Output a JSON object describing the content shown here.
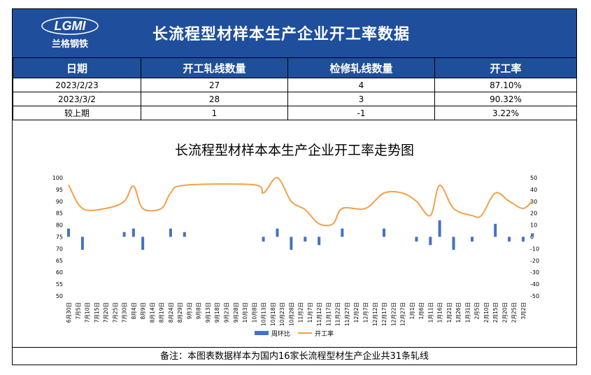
{
  "header": {
    "logo_text": "LGMI",
    "logo_sub": "兰格钢铁",
    "title": "长流程型材样本生产企业开工率数据"
  },
  "table": {
    "columns": [
      "日期",
      "开工轧线数量",
      "检修轧线数量",
      "开工率"
    ],
    "rows": [
      [
        "2023/2/23",
        "27",
        "4",
        "87.10%"
      ],
      [
        "2023/3/2",
        "28",
        "3",
        "90.32%"
      ],
      [
        "较上期",
        "1",
        "-1",
        "3.22%"
      ]
    ]
  },
  "note": "备注：本图表数据样本为国内16家长流程型材生产企业共31条轧线",
  "colors": {
    "header_bg": "#1f4e9c",
    "bar": "#4472c4",
    "line": "#f0a14a"
  },
  "chart_data": {
    "type": "bar+line",
    "title": "长流程型材样本本生产企业开工率走势图",
    "categories": [
      "6月30日",
      "7月5日",
      "7月10日",
      "7月15日",
      "7月20日",
      "7月25日",
      "7月30日",
      "8月4日",
      "8月9日",
      "8月14日",
      "8月19日",
      "8月24日",
      "8月29日",
      "9月3日",
      "9月8日",
      "9月13日",
      "9月18日",
      "9月23日",
      "9月28日",
      "10月3日",
      "10月8日",
      "10月13日",
      "10月18日",
      "10月23日",
      "10月28日",
      "11月2日",
      "11月7日",
      "11月12日",
      "11月17日",
      "11月22日",
      "11月27日",
      "12月2日",
      "12月7日",
      "12月12日",
      "12月17日",
      "12月22日",
      "12月27日",
      "1月1日",
      "1月6日",
      "1月11日",
      "1月16日",
      "1月21日",
      "1月26日",
      "1月31日",
      "2月5日",
      "2月10日",
      "2月15日",
      "2月20日",
      "2月25日",
      "3月2日"
    ],
    "left_axis": {
      "min": 50,
      "max": 100,
      "step": 5
    },
    "right_axis": {
      "min": -50,
      "max": 50,
      "step": 10
    },
    "grid": false,
    "legend_position": "bottom",
    "series": [
      {
        "name": "周环比",
        "type": "bar",
        "axis": "right",
        "points": [
          {
            "x": 0,
            "y": 7
          },
          {
            "x": 1.5,
            "y": -11
          },
          {
            "x": 6,
            "y": 4
          },
          {
            "x": 7,
            "y": 7
          },
          {
            "x": 8,
            "y": -11
          },
          {
            "x": 11,
            "y": 7
          },
          {
            "x": 12.5,
            "y": 4
          },
          {
            "x": 21,
            "y": -4
          },
          {
            "x": 22.5,
            "y": 7
          },
          {
            "x": 24,
            "y": -11
          },
          {
            "x": 25.5,
            "y": -4
          },
          {
            "x": 27,
            "y": -7
          },
          {
            "x": 29.5,
            "y": 7
          },
          {
            "x": 34,
            "y": 7
          },
          {
            "x": 37.5,
            "y": -4
          },
          {
            "x": 39,
            "y": -7
          },
          {
            "x": 40,
            "y": 14
          },
          {
            "x": 41.5,
            "y": -11
          },
          {
            "x": 43.5,
            "y": -4
          },
          {
            "x": 46,
            "y": 11
          },
          {
            "x": 47.5,
            "y": -4
          },
          {
            "x": 49,
            "y": -4
          },
          {
            "x": 50,
            "y": 3
          }
        ]
      },
      {
        "name": "开工率",
        "type": "line",
        "axis": "left",
        "points": [
          {
            "x": 0,
            "y": 97
          },
          {
            "x": 1.5,
            "y": 87
          },
          {
            "x": 4,
            "y": 87
          },
          {
            "x": 6,
            "y": 90
          },
          {
            "x": 7,
            "y": 96.5
          },
          {
            "x": 8,
            "y": 87
          },
          {
            "x": 10,
            "y": 87
          },
          {
            "x": 11,
            "y": 93.5
          },
          {
            "x": 12.5,
            "y": 96.8
          },
          {
            "x": 20,
            "y": 97
          },
          {
            "x": 21,
            "y": 93.5
          },
          {
            "x": 22.5,
            "y": 100
          },
          {
            "x": 24,
            "y": 90
          },
          {
            "x": 25.5,
            "y": 86.5
          },
          {
            "x": 27,
            "y": 80.5
          },
          {
            "x": 28.5,
            "y": 80.5
          },
          {
            "x": 29.5,
            "y": 87
          },
          {
            "x": 32,
            "y": 87
          },
          {
            "x": 34,
            "y": 93.5
          },
          {
            "x": 36,
            "y": 93.5
          },
          {
            "x": 37.5,
            "y": 90
          },
          {
            "x": 39,
            "y": 84
          },
          {
            "x": 40,
            "y": 96.8
          },
          {
            "x": 41.5,
            "y": 87
          },
          {
            "x": 43.5,
            "y": 84
          },
          {
            "x": 44.5,
            "y": 84
          },
          {
            "x": 46,
            "y": 93.5
          },
          {
            "x": 47.5,
            "y": 90
          },
          {
            "x": 49,
            "y": 87
          },
          {
            "x": 50,
            "y": 90.3
          }
        ]
      }
    ]
  }
}
